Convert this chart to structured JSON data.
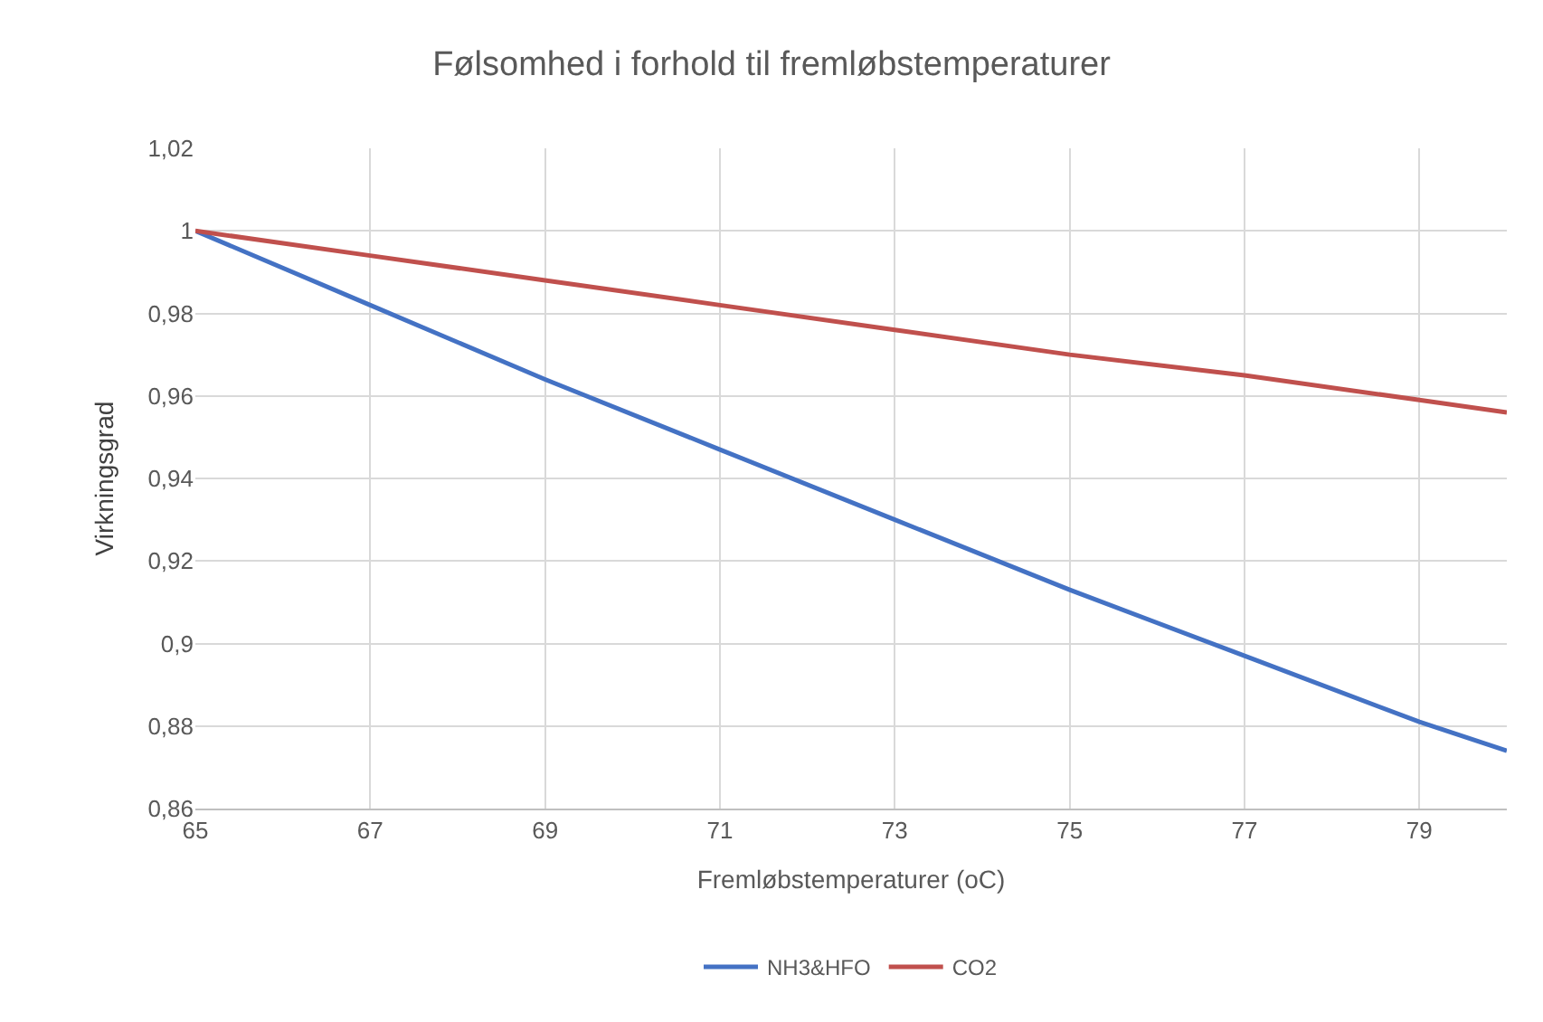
{
  "chart_data": {
    "type": "line",
    "title": "Følsomhed i forhold til fremløbstemperaturer",
    "xlabel": "Fremløbstemperaturer (oC)",
    "ylabel": "Virkningsgrad",
    "x": [
      65,
      67,
      69,
      71,
      73,
      75,
      77,
      79,
      80
    ],
    "series": [
      {
        "name": "NH3&HFO",
        "color": "#4472c4",
        "values": [
          1.0,
          0.982,
          0.964,
          0.947,
          0.93,
          0.913,
          0.897,
          0.881,
          0.874
        ]
      },
      {
        "name": "CO2",
        "color": "#c0504d",
        "values": [
          1.0,
          0.994,
          0.988,
          0.982,
          0.976,
          0.97,
          0.965,
          0.959,
          0.956
        ]
      }
    ],
    "xlim": [
      65,
      80
    ],
    "xticks": [
      65,
      67,
      69,
      71,
      73,
      75,
      77,
      79
    ],
    "ylim": [
      0.86,
      1.02
    ],
    "yticks": [
      {
        "value": 0.86,
        "label": "0,86"
      },
      {
        "value": 0.88,
        "label": "0,88"
      },
      {
        "value": 0.9,
        "label": "0,9"
      },
      {
        "value": 0.92,
        "label": "0,92"
      },
      {
        "value": 0.94,
        "label": "0,94"
      },
      {
        "value": 0.96,
        "label": "0,96"
      },
      {
        "value": 0.98,
        "label": "0,98"
      },
      {
        "value": 1,
        "label": "1"
      },
      {
        "value": 1.02,
        "label": "1,02"
      }
    ],
    "grid": true,
    "legend": "bottom",
    "marker": "none",
    "line_style": "solid"
  }
}
